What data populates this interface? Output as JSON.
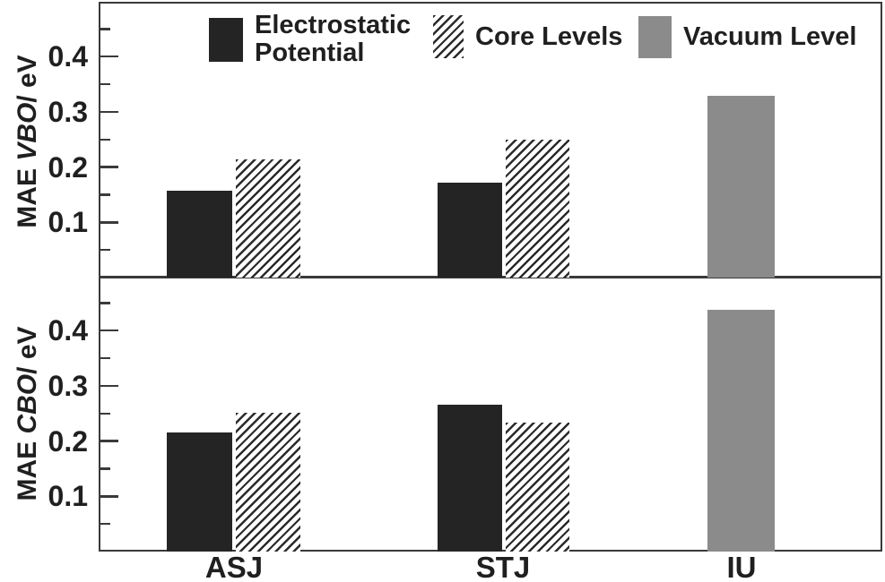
{
  "figure": {
    "background": "#ffffff",
    "frame_color": "#3a3a3a",
    "bar_black": "#242424",
    "bar_gray": "#8b8b8b",
    "hatch_line": "#2a2a2a",
    "text_color": "#1f1f1f"
  },
  "legend": {
    "items": [
      {
        "name": "Electrostatic Potential",
        "line1": "Electrostatic",
        "line2": "Potential",
        "style": "solid-black"
      },
      {
        "name": "Core Levels",
        "line1": "Core Levels",
        "style": "hatch"
      },
      {
        "name": "Vacuum Level",
        "line1": "Vacuum Level",
        "style": "solid-gray"
      }
    ]
  },
  "chart_data": [
    {
      "type": "bar",
      "panel": "top",
      "ylabel": "MAE VBO/ eV",
      "ylabel_parts": {
        "prefix": "MAE ",
        "italic": "VBO",
        "suffix": "/ eV"
      },
      "categories": [
        "ASJ",
        "STJ",
        "IU"
      ],
      "series": [
        {
          "name": "Electrostatic Potential",
          "values": [
            0.157,
            0.172,
            null
          ]
        },
        {
          "name": "Core Levels",
          "values": [
            0.214,
            0.25,
            null
          ]
        },
        {
          "name": "Vacuum Level",
          "values": [
            null,
            null,
            0.329
          ]
        }
      ],
      "ylim": [
        0,
        0.5
      ],
      "yticks": [
        0.1,
        0.2,
        0.3,
        0.4
      ],
      "ytick_labels": [
        "0.1",
        "0.2",
        "0.3",
        "0.4"
      ],
      "minor_tick_step": 0.05,
      "grid": false,
      "legend_position": "top-inside"
    },
    {
      "type": "bar",
      "panel": "bottom",
      "ylabel": "MAE CBO/ eV",
      "ylabel_parts": {
        "prefix": "MAE ",
        "italic": "CBO",
        "suffix": "/ eV"
      },
      "categories": [
        "ASJ",
        "STJ",
        "IU"
      ],
      "series": [
        {
          "name": "Electrostatic Potential",
          "values": [
            0.215,
            0.265,
            null
          ]
        },
        {
          "name": "Core Levels",
          "values": [
            0.251,
            0.233,
            null
          ]
        },
        {
          "name": "Vacuum Level",
          "values": [
            null,
            null,
            0.437
          ]
        }
      ],
      "ylim": [
        0,
        0.5
      ],
      "yticks": [
        0.1,
        0.2,
        0.3,
        0.4
      ],
      "ytick_labels": [
        "0.1",
        "0.2",
        "0.3",
        "0.4"
      ],
      "minor_tick_step": 0.05,
      "grid": false
    }
  ]
}
